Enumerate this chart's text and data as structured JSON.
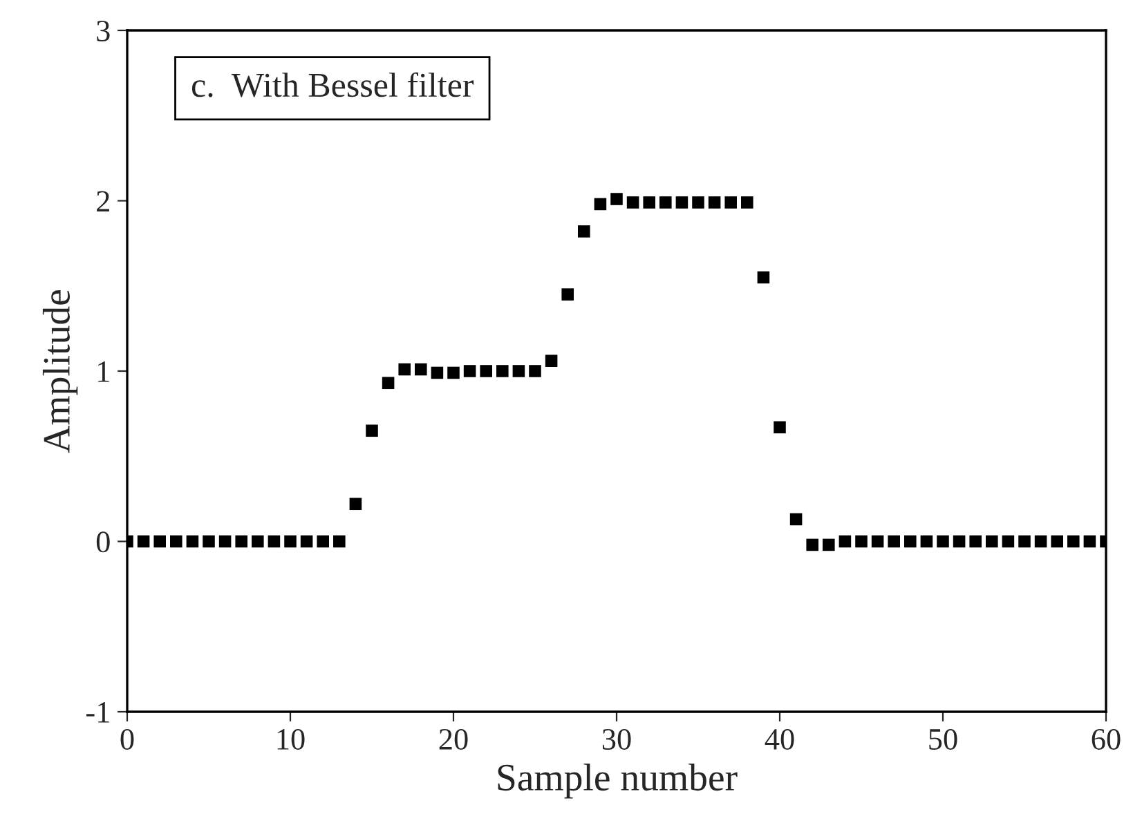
{
  "chart_data": {
    "type": "scatter",
    "xlabel": "Sample number",
    "ylabel": "Amplitude",
    "annotations": [
      "c.  With Bessel filter"
    ],
    "x": [
      0,
      1,
      2,
      3,
      4,
      5,
      6,
      7,
      8,
      9,
      10,
      11,
      12,
      13,
      14,
      15,
      16,
      17,
      18,
      19,
      20,
      21,
      22,
      23,
      24,
      25,
      26,
      27,
      28,
      29,
      30,
      31,
      32,
      33,
      34,
      35,
      36,
      37,
      38,
      39,
      40,
      41,
      42,
      43,
      44,
      45,
      46,
      47,
      48,
      49,
      50,
      51,
      52,
      53,
      54,
      55,
      56,
      57,
      58,
      59,
      60
    ],
    "series": [
      {
        "color": "#000000",
        "values": [
          0,
          0,
          0,
          0,
          0,
          0,
          0,
          0,
          0,
          0,
          0,
          0,
          0,
          0,
          0.22,
          0.65,
          0.93,
          1.01,
          1.01,
          0.99,
          0.99,
          1.0,
          1.0,
          1.0,
          1.0,
          1.0,
          1.06,
          1.45,
          1.82,
          1.98,
          2.01,
          1.99,
          1.99,
          1.99,
          1.99,
          1.99,
          1.99,
          1.99,
          1.99,
          1.55,
          0.67,
          0.13,
          -0.02,
          -0.02,
          0,
          0,
          0,
          0,
          0,
          0,
          0,
          0,
          0,
          0,
          0,
          0,
          0,
          0,
          0,
          0,
          0
        ]
      }
    ],
    "marker": "square",
    "grid": false,
    "legend": false,
    "xlim": [
      0,
      60
    ],
    "xticks": [
      0,
      10,
      20,
      30,
      40,
      50,
      60
    ],
    "ylim": [
      -1,
      3
    ],
    "yticks": [
      -1,
      0,
      1,
      2,
      3
    ]
  }
}
